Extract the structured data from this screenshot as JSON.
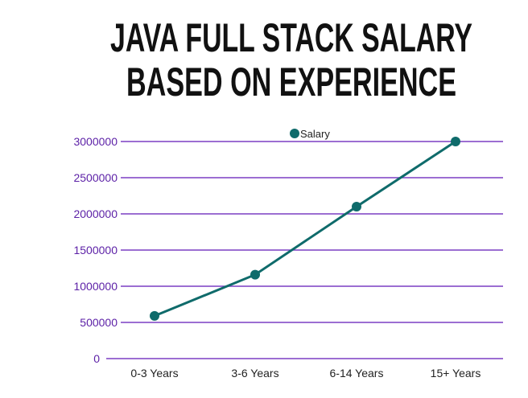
{
  "chart_data": {
    "type": "line",
    "title": [
      "JAVA FULL STACK SALARY",
      "BASED ON EXPERIENCE"
    ],
    "xlabel": "",
    "ylabel": "",
    "categories": [
      "0-3 Years",
      "3-6 Years",
      "6-14 Years",
      "15+ Years"
    ],
    "series": [
      {
        "name": "Salary",
        "values": [
          590000,
          1160000,
          2100000,
          3000000
        ],
        "color": "#0f6b6b"
      }
    ],
    "ylim": [
      0,
      3000000
    ],
    "yticks": [
      "0",
      "500000",
      "1000000",
      "1500000",
      "2000000",
      "2500000",
      "3000000"
    ],
    "grid": true,
    "grid_color": "#7b3fc4",
    "legend_position": "top-center"
  }
}
